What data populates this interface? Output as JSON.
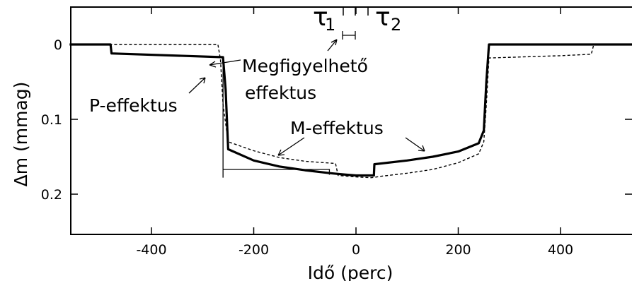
{
  "chart_data": {
    "type": "line",
    "xlabel": "Idő (perc)",
    "ylabel": "Δm (mmag)",
    "xlim": [
      -560,
      540
    ],
    "ylim": [
      0.25,
      -0.05
    ],
    "x_ticks": [
      -400,
      -200,
      0,
      200,
      400
    ],
    "x_tick_labels": [
      "-400",
      "-200",
      "0",
      "200",
      "400"
    ],
    "y_ticks": [
      0,
      0.1,
      0.2
    ],
    "y_tick_labels": [
      "0",
      "0.1",
      "0.2"
    ],
    "y_inverted": true,
    "grid": false,
    "series": [
      {
        "style": "solid",
        "x": [
          -560,
          -480,
          -478,
          -260,
          -255,
          -250,
          -200,
          -150,
          -100,
          -50,
          -20,
          0,
          20,
          35,
          36,
          100,
          150,
          200,
          240,
          250,
          255,
          260,
          540
        ],
        "y": [
          0,
          0,
          0.012,
          0.017,
          0.06,
          0.14,
          0.155,
          0.163,
          0.168,
          0.172,
          0.174,
          0.175,
          0.175,
          0.175,
          0.16,
          0.155,
          0.15,
          0.143,
          0.132,
          0.115,
          0.05,
          0,
          0
        ]
      },
      {
        "style": "dashed",
        "x": [
          -560,
          -270,
          -265,
          -260,
          -250,
          -200,
          -150,
          -100,
          -60,
          -40,
          -35,
          0,
          30,
          50,
          100,
          150,
          200,
          240,
          250,
          255,
          260,
          400,
          460,
          465,
          540
        ],
        "y": [
          0,
          0,
          0.02,
          0.08,
          0.13,
          0.142,
          0.151,
          0.156,
          0.158,
          0.159,
          0.175,
          0.177,
          0.178,
          0.176,
          0.172,
          0.167,
          0.158,
          0.146,
          0.13,
          0.08,
          0.018,
          0.015,
          0.013,
          0,
          0
        ]
      }
    ],
    "annotations": {
      "tau1": "τ",
      "tau1_sub": "1",
      "tau2": "τ",
      "tau2_sub": "2",
      "observed_effect_line1": "Megfigyelhető",
      "observed_effect_line2": "effektus",
      "p_effect": "P-effektus",
      "m_effect": "M-effektus"
    }
  }
}
